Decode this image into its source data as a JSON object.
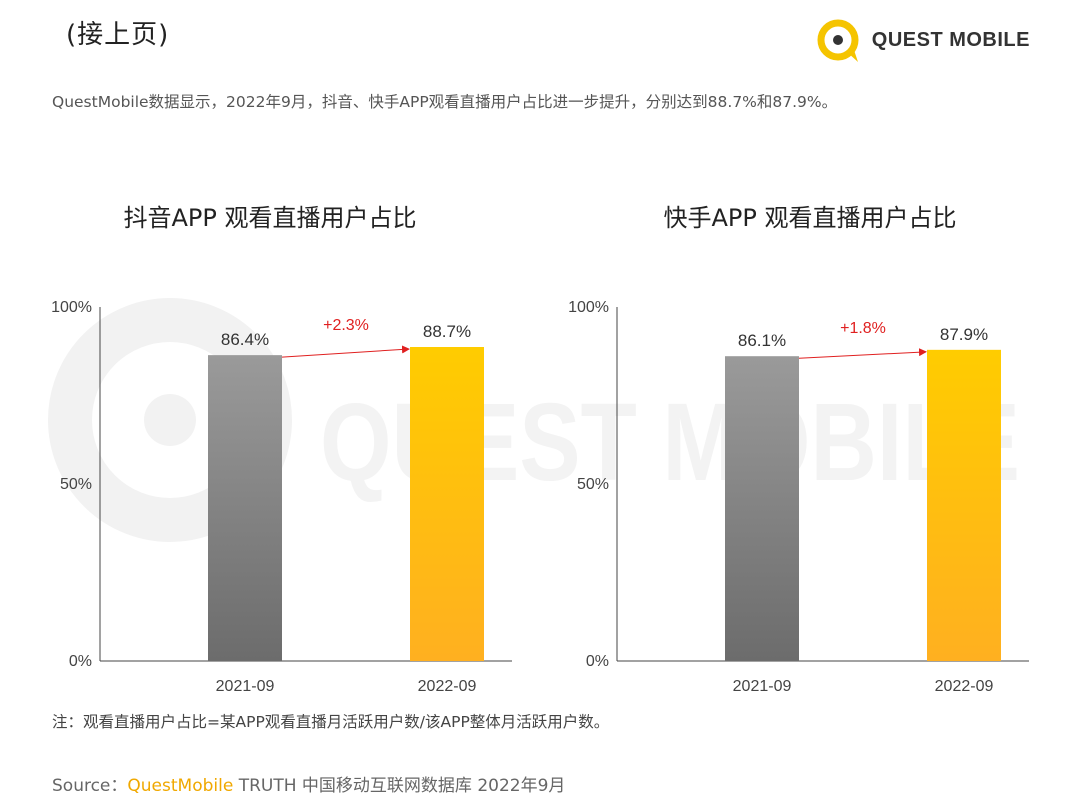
{
  "header": {
    "continued_label": "(接上页)",
    "logo_text": "QUEST MOBILE",
    "logo_color": "#f5c400",
    "watermark_text": "QUEST MOBILE"
  },
  "description": "QuestMobile数据显示，2022年9月，抖音、快手APP观看直播用户占比进一步提升，分别达到88.7%和87.9%。",
  "chart_data": [
    {
      "type": "bar",
      "title": "抖音APP 观看直播用户占比",
      "categories": [
        "2021-09",
        "2022-09"
      ],
      "values": [
        86.4,
        88.7
      ],
      "value_labels": [
        "86.4%",
        "88.7%"
      ],
      "ylim": [
        0,
        100
      ],
      "yticks": [
        "0%",
        "50%",
        "100%"
      ],
      "change_label": "+2.3%",
      "bar_colors": [
        "#888888",
        "#ffc000"
      ]
    },
    {
      "type": "bar",
      "title": "快手APP 观看直播用户占比",
      "categories": [
        "2021-09",
        "2022-09"
      ],
      "values": [
        86.1,
        87.9
      ],
      "value_labels": [
        "86.1%",
        "87.9%"
      ],
      "ylim": [
        0,
        100
      ],
      "yticks": [
        "0%",
        "50%",
        "100%"
      ],
      "change_label": "+1.8%",
      "bar_colors": [
        "#888888",
        "#ffc000"
      ]
    }
  ],
  "footer": {
    "note": "注：观看直播用户占比=某APP观看直播月活跃用户数/该APP整体月活跃用户数。",
    "source_prefix": "Source：",
    "source_brand": "QuestMobile",
    "source_rest": " TRUTH 中国移动互联网数据库 2022年9月"
  },
  "colors": {
    "accent": "#ffc000",
    "gray_bar": "#888888",
    "change_arrow": "#e02020"
  }
}
